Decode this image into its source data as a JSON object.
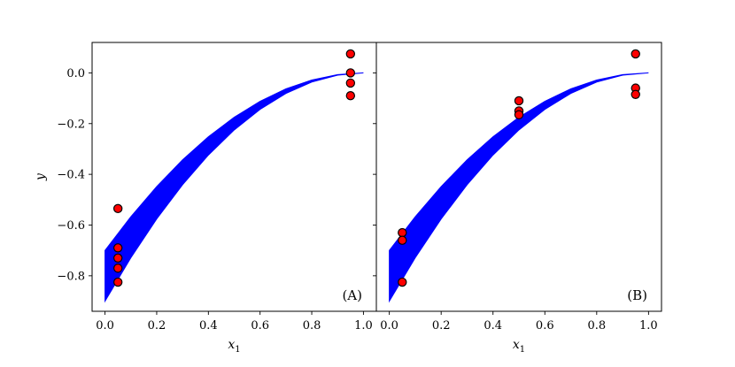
{
  "chart_data": {
    "type": "scatter",
    "ylabel": "y",
    "ylim": [
      -0.94,
      0.12
    ],
    "yticks": [
      -0.8,
      -0.6,
      -0.4,
      -0.2,
      0.0
    ],
    "ytick_labels": [
      "−0.8",
      "−0.6",
      "−0.4",
      "−0.2",
      "0.0"
    ],
    "band_color": "#0000ff",
    "point_fill": "#ff0000",
    "point_edge": "#000000",
    "panels": [
      {
        "label": "(A)",
        "xlabel": "x1",
        "xlim": [
          -0.05,
          1.05
        ],
        "xticks": [
          0.0,
          0.2,
          0.4,
          0.6,
          0.8,
          1.0
        ],
        "xtick_labels": [
          "0.0",
          "0.2",
          "0.4",
          "0.6",
          "0.8",
          "1.0"
        ],
        "band": {
          "x": [
            0.0,
            0.1,
            0.2,
            0.3,
            0.4,
            0.5,
            0.6,
            0.7,
            0.8,
            0.9,
            1.0
          ],
          "lower": [
            -0.9,
            -0.729,
            -0.576,
            -0.441,
            -0.324,
            -0.225,
            -0.144,
            -0.081,
            -0.036,
            -0.009,
            0.0
          ],
          "upper": [
            -0.7,
            -0.567,
            -0.448,
            -0.343,
            -0.252,
            -0.175,
            -0.112,
            -0.063,
            -0.028,
            -0.007,
            0.0
          ]
        },
        "points": {
          "x": [
            0.05,
            0.05,
            0.05,
            0.05,
            0.05,
            0.95,
            0.95,
            0.95,
            0.95
          ],
          "y": [
            -0.535,
            -0.69,
            -0.73,
            -0.77,
            -0.825,
            0.075,
            0.0,
            -0.04,
            -0.09
          ]
        }
      },
      {
        "label": "(B)",
        "xlabel": "x1",
        "xlim": [
          -0.05,
          1.05
        ],
        "xticks": [
          0.0,
          0.2,
          0.4,
          0.6,
          0.8,
          1.0
        ],
        "xtick_labels": [
          "0.0",
          "0.2",
          "0.4",
          "0.6",
          "0.8",
          "1.0"
        ],
        "band": {
          "x": [
            0.0,
            0.1,
            0.2,
            0.3,
            0.4,
            0.5,
            0.6,
            0.7,
            0.8,
            0.9,
            1.0
          ],
          "lower": [
            -0.9,
            -0.729,
            -0.576,
            -0.441,
            -0.324,
            -0.225,
            -0.144,
            -0.081,
            -0.036,
            -0.009,
            0.0
          ],
          "upper": [
            -0.7,
            -0.567,
            -0.448,
            -0.343,
            -0.252,
            -0.175,
            -0.112,
            -0.063,
            -0.028,
            -0.007,
            0.0
          ]
        },
        "points": {
          "x": [
            0.05,
            0.05,
            0.05,
            0.5,
            0.5,
            0.5,
            0.95,
            0.95,
            0.95
          ],
          "y": [
            -0.63,
            -0.66,
            -0.825,
            -0.11,
            -0.15,
            -0.165,
            0.075,
            -0.06,
            -0.085
          ]
        }
      }
    ]
  }
}
